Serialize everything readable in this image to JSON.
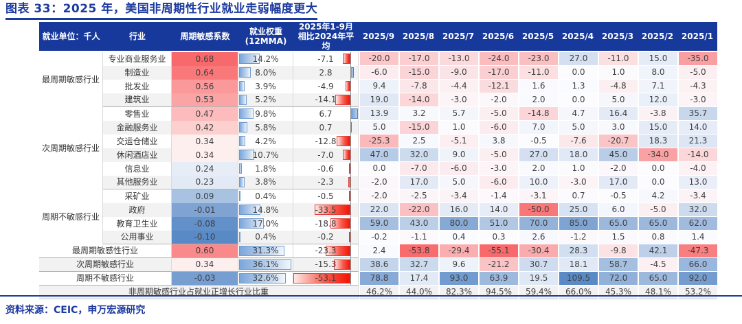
{
  "title": "图表 33：2025 年，美国非周期性行业就业走弱幅度更大",
  "source": "资料来源：CEIC，申万宏源研究",
  "chart_data": {
    "type": "table",
    "unit_label": "就业单位：千人",
    "headers": {
      "industry": "行业",
      "coef": "周期敏感系数",
      "weight_l1": "就业权重",
      "weight_l2": "(12MMA)",
      "ytd_l1": "2025年1-9月",
      "ytd_l2": "相比2024年平均"
    },
    "months": [
      "2025/9",
      "2025/8",
      "2025/7",
      "2025/6",
      "2025/5",
      "2025/4",
      "2025/3",
      "2025/2",
      "2025/1"
    ],
    "groups": [
      {
        "name": "最周期敏感行业",
        "rows": [
          {
            "industry": "专业商业服务业",
            "coef": 0.68,
            "weight": "14.2%",
            "ytd": -7.1,
            "monthly": [
              -20.0,
              -17.0,
              -13.0,
              -24.0,
              -23.0,
              27.0,
              -11.0,
              15.0,
              -35.0
            ]
          },
          {
            "industry": "制造业",
            "coef": 0.64,
            "weight": "8.0%",
            "ytd": 2.8,
            "monthly": [
              -6.0,
              -15.0,
              -9.0,
              -17.0,
              -11.0,
              0.0,
              1.0,
              8.0,
              -5.0
            ]
          },
          {
            "industry": "批发业",
            "coef": 0.56,
            "weight": "3.9%",
            "ytd": -4.9,
            "monthly": [
              9.4,
              -7.8,
              -4.4,
              -12.1,
              1.6,
              1.3,
              -4.8,
              7.1,
              -4.3
            ]
          },
          {
            "industry": "建筑业",
            "coef": 0.53,
            "weight": "5.2%",
            "ytd": -14.1,
            "monthly": [
              19.0,
              -14.0,
              -3.0,
              -2.0,
              2.0,
              0.0,
              5.0,
              12.0,
              -3.0
            ]
          }
        ]
      },
      {
        "name": "次周期敏感行业",
        "rows": [
          {
            "industry": "零售业",
            "coef": 0.47,
            "weight": "9.8%",
            "ytd": 6.7,
            "monthly": [
              13.9,
              3.2,
              5.7,
              -5.0,
              -14.8,
              4.7,
              16.4,
              -3.8,
              35.7
            ]
          },
          {
            "industry": "金融服务业",
            "coef": 0.42,
            "weight": "5.8%",
            "ytd": 0.7,
            "monthly": [
              5.0,
              -15.0,
              1.0,
              -6.0,
              7.0,
              5.0,
              3.0,
              15.0,
              14.0
            ]
          },
          {
            "industry": "交运仓储业",
            "coef": 0.34,
            "weight": "4.2%",
            "ytd": -12.8,
            "monthly": [
              -25.3,
              2.5,
              -5.1,
              3.8,
              -0.5,
              -7.6,
              -20.7,
              18.3,
              21.3
            ]
          },
          {
            "industry": "休闲酒店业",
            "coef": 0.34,
            "weight": "10.7%",
            "ytd": -7.0,
            "monthly": [
              47.0,
              32.0,
              9.0,
              -5.0,
              27.0,
              18.0,
              45.0,
              -34.0,
              -14.0
            ]
          },
          {
            "industry": "信息业",
            "coef": 0.24,
            "weight": "1.8%",
            "ytd": -0.6,
            "monthly": [
              0.0,
              -7.0,
              -6.0,
              -3.0,
              2.0,
              1.0,
              -2.0,
              0.0,
              -4.0
            ]
          },
          {
            "industry": "其他服务业",
            "coef": 0.23,
            "weight": "3.8%",
            "ytd": -2.3,
            "monthly": [
              -2.0,
              17.0,
              5.0,
              -6.0,
              10.0,
              -3.0,
              17.0,
              0.0,
              13.0
            ]
          }
        ]
      },
      {
        "name": "周期不敏感行业",
        "rows": [
          {
            "industry": "采矿业",
            "coef": 0.09,
            "weight": "0.4%",
            "ytd": -0.5,
            "monthly": [
              -2.0,
              -2.5,
              -3.4,
              -1.4,
              -3.1,
              0.7,
              -0.5,
              4.2,
              -3.4
            ]
          },
          {
            "industry": "政府",
            "coef": -0.01,
            "weight": "14.8%",
            "ytd": -33.5,
            "monthly": [
              22.0,
              -22.0,
              16.0,
              14.0,
              -50.0,
              25.0,
              6.0,
              -5.0,
              32.0
            ]
          },
          {
            "industry": "教育卫生业",
            "coef": -0.08,
            "weight": "17.0%",
            "ytd": -18.8,
            "monthly": [
              59.0,
              43.0,
              80.0,
              51.0,
              70.0,
              85.0,
              65.0,
              65.0,
              62.0
            ]
          },
          {
            "industry": "公用事业",
            "coef": -0.1,
            "weight": "0.4%",
            "ytd": -0.2,
            "monthly": [
              -0.2,
              -1.1,
              0.4,
              0.3,
              2.6,
              -1.2,
              1.5,
              0.8,
              1.4
            ]
          }
        ]
      }
    ],
    "summary_rows": [
      {
        "label": "最周期敏感性行业",
        "coef": 0.6,
        "weight": "31.3%",
        "ytd": -23.3,
        "monthly": [
          2.4,
          -53.8,
          -29.4,
          -55.1,
          -30.4,
          28.3,
          -9.8,
          42.1,
          -47.3
        ]
      },
      {
        "label": "次周期敏感行业",
        "coef": 0.34,
        "weight": "36.1%",
        "ytd": -15.3,
        "monthly": [
          38.6,
          32.7,
          9.6,
          -21.2,
          30.7,
          18.1,
          58.7,
          -4.5,
          66.0
        ]
      },
      {
        "label": "周期不敏感行业",
        "coef": -0.03,
        "weight": "32.6%",
        "ytd": -53.1,
        "monthly": [
          78.8,
          17.4,
          93.0,
          63.9,
          19.5,
          109.5,
          72.0,
          65.0,
          92.0
        ]
      }
    ],
    "share_row": {
      "label": "非周期敏感行业占就业正增长行业比重",
      "values": [
        "46.2%",
        "44.0%",
        "82.3%",
        "94.5%",
        "59.4%",
        "66.0%",
        "45.3%",
        "48.1%",
        "53.2%"
      ]
    }
  },
  "colors": {
    "header_bg": "#16399b",
    "accent_navy": "#1d3a9e",
    "heat_red": "#F8696B",
    "heat_blue": "#5A8AC6",
    "heat_mid": "#FCFCFF",
    "stripe_gray": "#f2f2f2"
  }
}
